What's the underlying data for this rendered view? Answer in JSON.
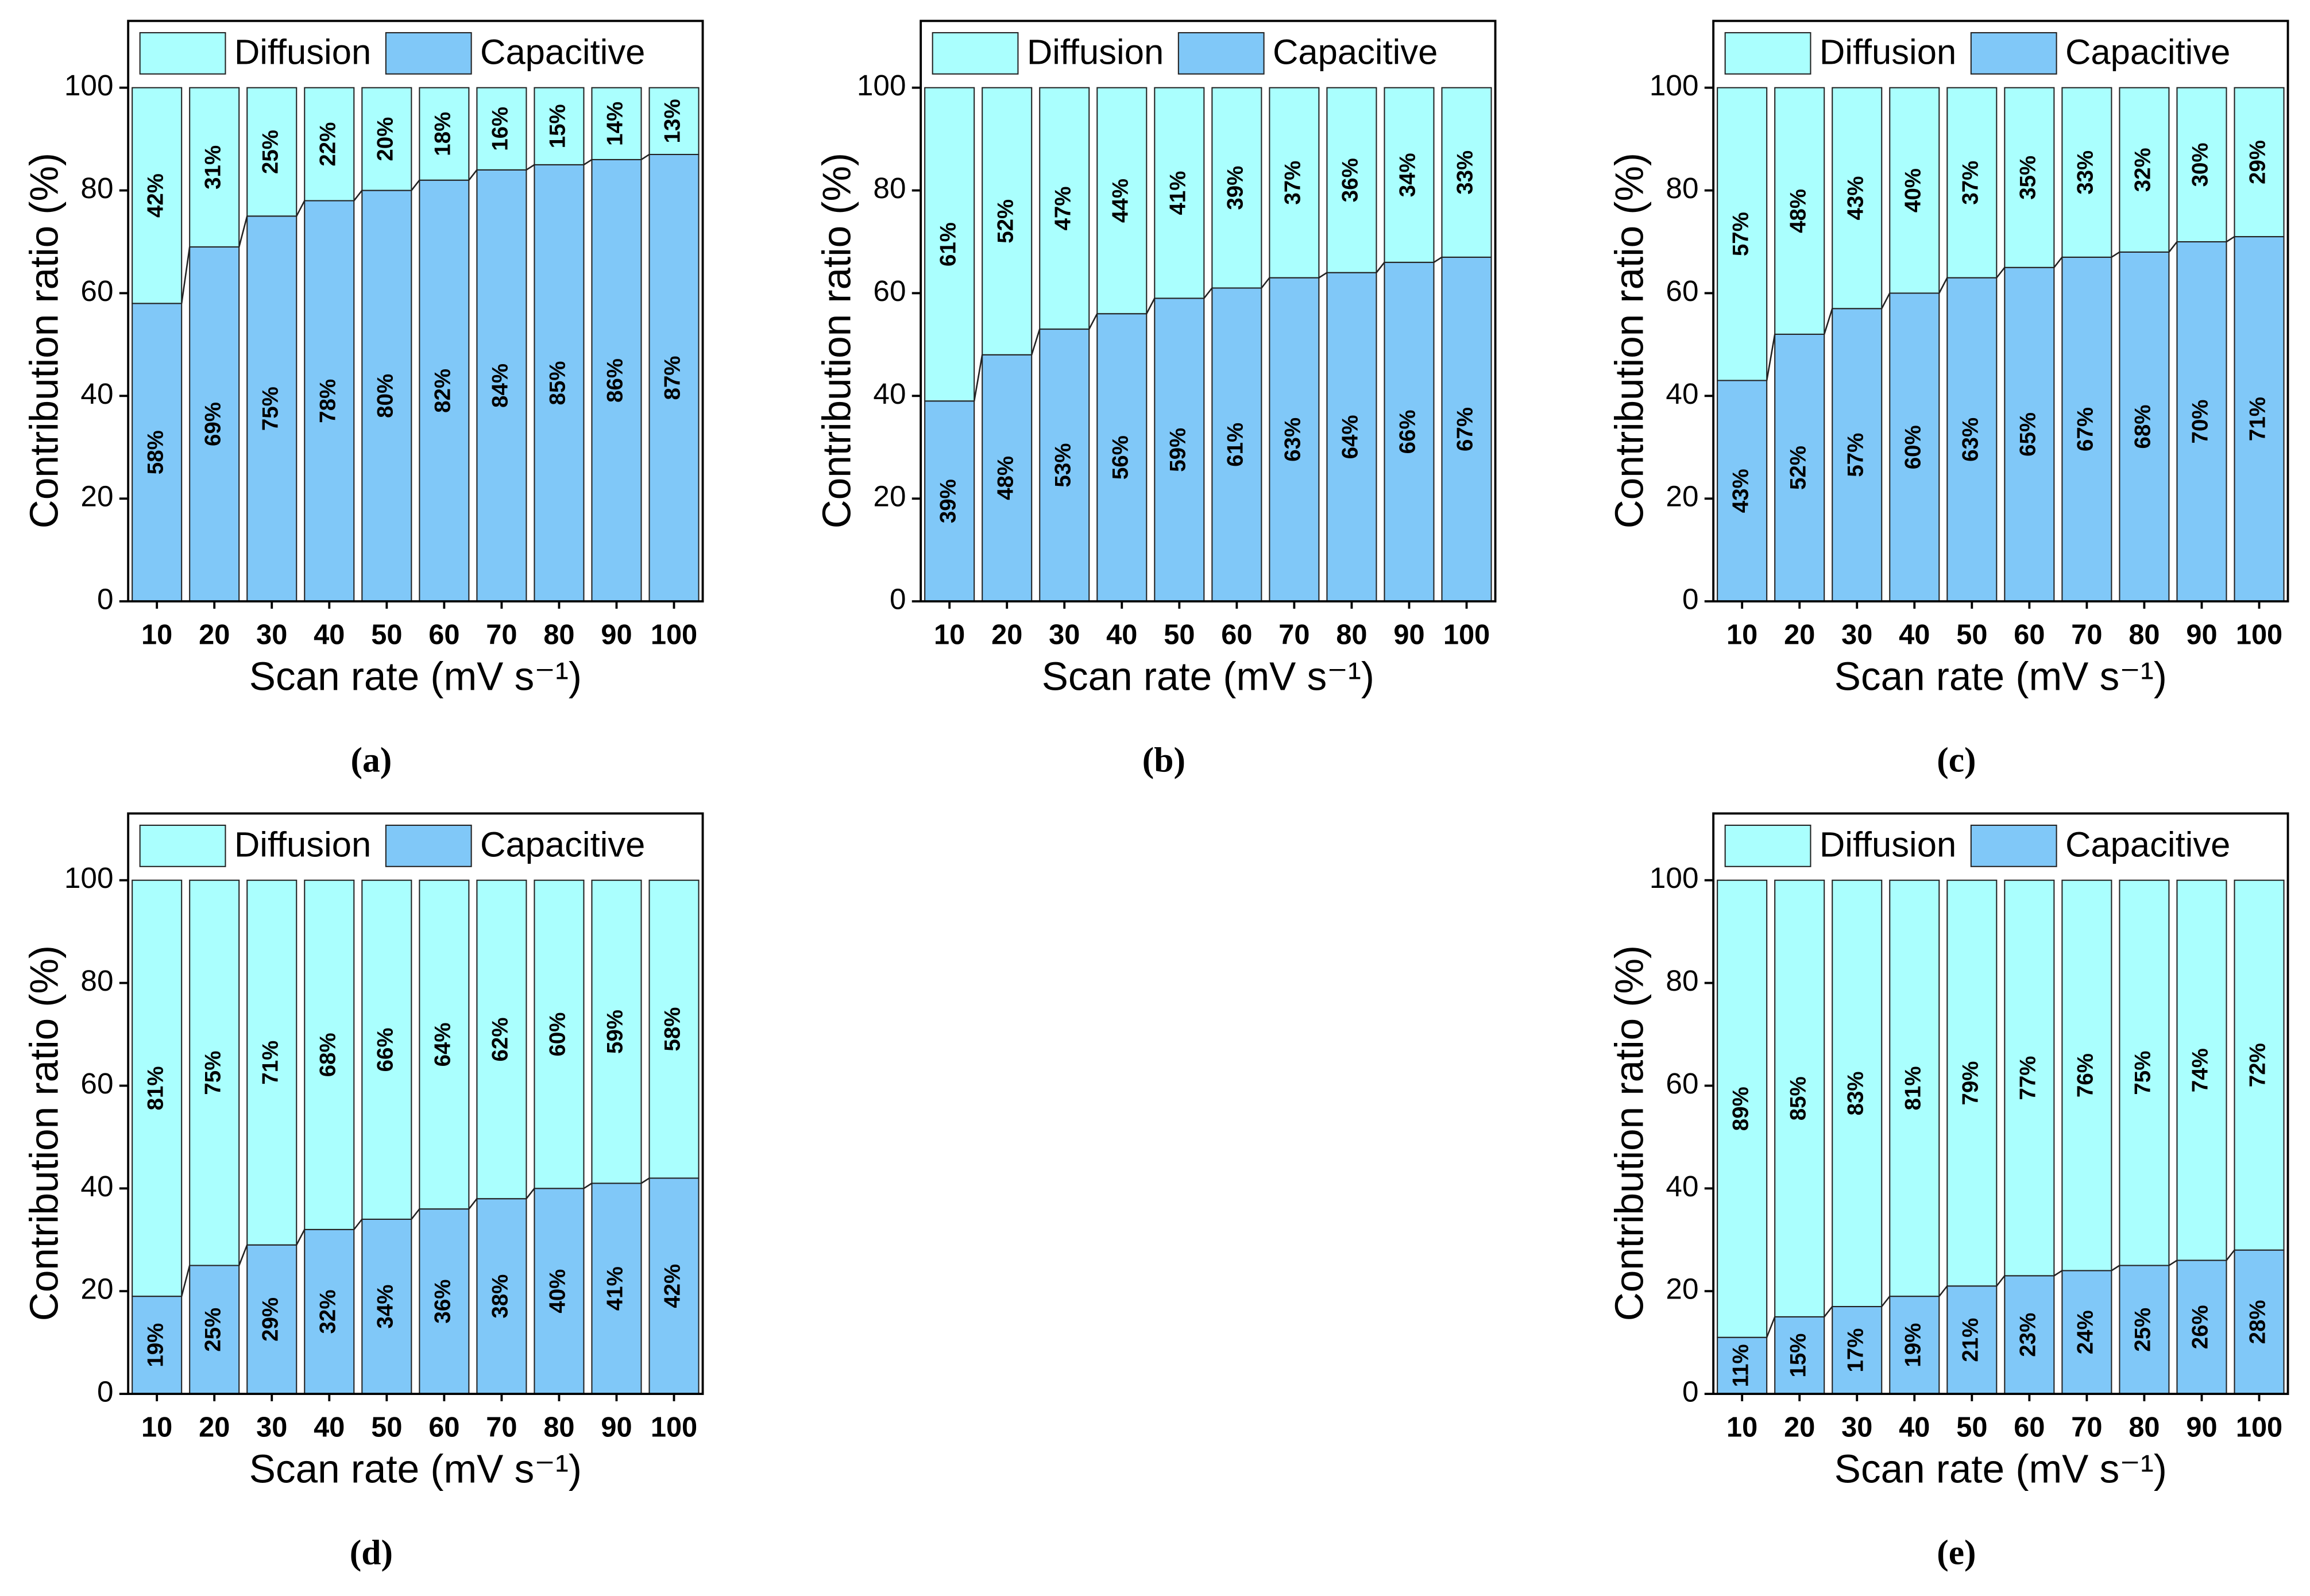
{
  "chart_data": [
    {
      "type": "bar",
      "stacked": true,
      "caption": "(a)",
      "xlabel": "Scan rate (mV s⁻¹)",
      "ylabel": "Contribution ratio (%)",
      "categories": [
        "10",
        "20",
        "30",
        "40",
        "50",
        "60",
        "70",
        "80",
        "90",
        "100"
      ],
      "series": [
        {
          "name": "Capacitive",
          "color": "#80c8f8",
          "values": [
            58,
            69,
            75,
            78,
            80,
            82,
            84,
            85,
            86,
            87
          ],
          "value_labels": [
            "58%",
            "69%",
            "75%",
            "78%",
            "80%",
            "82%",
            "84%",
            "85%",
            "86%",
            "87%"
          ]
        },
        {
          "name": "Diffusion",
          "color": "#aafffe",
          "values": [
            42,
            31,
            25,
            22,
            20,
            18,
            16,
            15,
            14,
            13
          ],
          "value_labels": [
            "42%",
            "31%",
            "25%",
            "22%",
            "20%",
            "18%",
            "16%",
            "15%",
            "14%",
            "13%"
          ]
        }
      ],
      "ylim": [
        0,
        113
      ],
      "yticks": [
        0,
        20,
        40,
        60,
        80,
        100
      ],
      "grid": false
    },
    {
      "type": "bar",
      "stacked": true,
      "caption": "(b)",
      "xlabel": "Scan rate (mV s⁻¹)",
      "ylabel": "Contribution ratio (%)",
      "categories": [
        "10",
        "20",
        "30",
        "40",
        "50",
        "60",
        "70",
        "80",
        "90",
        "100"
      ],
      "series": [
        {
          "name": "Capacitive",
          "color": "#80c8f8",
          "values": [
            39,
            48,
            53,
            56,
            59,
            61,
            63,
            64,
            66,
            67
          ],
          "value_labels": [
            "39%",
            "48%",
            "53%",
            "56%",
            "59%",
            "61%",
            "63%",
            "64%",
            "66%",
            "67%"
          ]
        },
        {
          "name": "Diffusion",
          "color": "#aafffe",
          "values": [
            61,
            52,
            47,
            44,
            41,
            39,
            37,
            36,
            34,
            33
          ],
          "value_labels": [
            "61%",
            "52%",
            "47%",
            "44%",
            "41%",
            "39%",
            "37%",
            "36%",
            "34%",
            "33%"
          ]
        }
      ],
      "ylim": [
        0,
        113
      ],
      "yticks": [
        0,
        20,
        40,
        60,
        80,
        100
      ],
      "grid": false
    },
    {
      "type": "bar",
      "stacked": true,
      "caption": "(c)",
      "xlabel": "Scan rate (mV s⁻¹)",
      "ylabel": "Contribution ratio (%)",
      "categories": [
        "10",
        "20",
        "30",
        "40",
        "50",
        "60",
        "70",
        "80",
        "90",
        "100"
      ],
      "series": [
        {
          "name": "Capacitive",
          "color": "#80c8f8",
          "values": [
            43,
            52,
            57,
            60,
            63,
            65,
            67,
            68,
            70,
            71
          ],
          "value_labels": [
            "43%",
            "52%",
            "57%",
            "60%",
            "63%",
            "65%",
            "67%",
            "68%",
            "70%",
            "71%"
          ]
        },
        {
          "name": "Diffusion",
          "color": "#aafffe",
          "values": [
            57,
            48,
            43,
            40,
            37,
            35,
            33,
            32,
            30,
            29
          ],
          "value_labels": [
            "57%",
            "48%",
            "43%",
            "40%",
            "37%",
            "35%",
            "33%",
            "32%",
            "30%",
            "29%"
          ]
        }
      ],
      "ylim": [
        0,
        113
      ],
      "yticks": [
        0,
        20,
        40,
        60,
        80,
        100
      ],
      "grid": false
    },
    {
      "type": "bar",
      "stacked": true,
      "caption": "(d)",
      "xlabel": "Scan rate (mV s⁻¹)",
      "ylabel": "Contribution ratio (%)",
      "categories": [
        "10",
        "20",
        "30",
        "40",
        "50",
        "60",
        "70",
        "80",
        "90",
        "100"
      ],
      "series": [
        {
          "name": "Capacitive",
          "color": "#80c8f8",
          "values": [
            19,
            25,
            29,
            32,
            34,
            36,
            38,
            40,
            41,
            42
          ],
          "value_labels": [
            "19%",
            "25%",
            "29%",
            "32%",
            "34%",
            "36%",
            "38%",
            "40%",
            "41%",
            "42%"
          ]
        },
        {
          "name": "Diffusion",
          "color": "#aafffe",
          "values": [
            81,
            75,
            71,
            68,
            66,
            64,
            62,
            60,
            59,
            58
          ],
          "value_labels": [
            "81%",
            "75%",
            "71%",
            "68%",
            "66%",
            "64%",
            "62%",
            "60%",
            "59%",
            "58%"
          ]
        }
      ],
      "ylim": [
        0,
        113
      ],
      "yticks": [
        0,
        20,
        40,
        60,
        80,
        100
      ],
      "grid": false
    },
    {
      "type": "bar",
      "stacked": true,
      "caption": "(e)",
      "xlabel": "Scan rate (mV s⁻¹)",
      "ylabel": "Contribution ratio (%)",
      "categories": [
        "10",
        "20",
        "30",
        "40",
        "50",
        "60",
        "70",
        "80",
        "90",
        "100"
      ],
      "series": [
        {
          "name": "Capacitive",
          "color": "#80c8f8",
          "values": [
            11,
            15,
            17,
            19,
            21,
            23,
            24,
            25,
            26,
            28
          ],
          "value_labels": [
            "11%",
            "15%",
            "17%",
            "19%",
            "21%",
            "23%",
            "24%",
            "25%",
            "26%",
            "28%"
          ]
        },
        {
          "name": "Diffusion",
          "color": "#aafffe",
          "values": [
            89,
            85,
            83,
            81,
            79,
            77,
            76,
            75,
            74,
            72
          ],
          "value_labels": [
            "89%",
            "85%",
            "83%",
            "81%",
            "79%",
            "77%",
            "76%",
            "75%",
            "74%",
            "72%"
          ]
        }
      ],
      "ylim": [
        0,
        113
      ],
      "yticks": [
        0,
        20,
        40,
        60,
        80,
        100
      ],
      "grid": false
    }
  ]
}
